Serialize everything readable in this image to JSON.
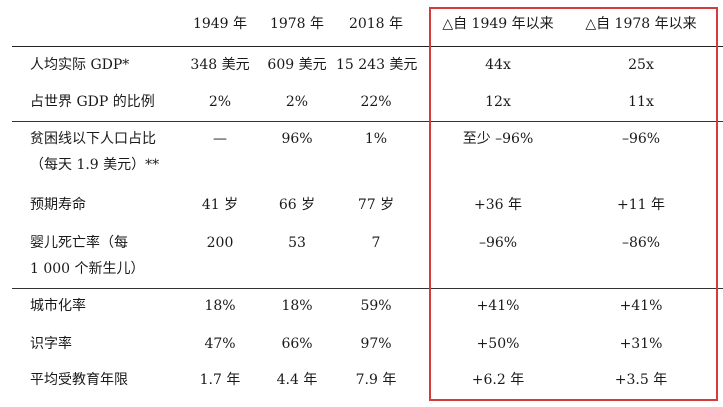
{
  "table": {
    "columns": [
      "1949 年",
      "1978 年",
      "2018 年",
      "△自 1949 年以来",
      "△自 1978 年以来"
    ],
    "rows": [
      {
        "label": [
          "人均实际 GDP*"
        ],
        "values": [
          "348 美元",
          "609 美元",
          "15 243 美元",
          "44x",
          "25x"
        ]
      },
      {
        "label": [
          "占世界 GDP 的比例"
        ],
        "values": [
          "2%",
          "2%",
          "22%",
          "12x",
          "11x"
        ]
      },
      {
        "label": [
          "贫困线以下人口占比",
          "（每天 1.9 美元）**"
        ],
        "values": [
          "—",
          "96%",
          "1%",
          "至少 –96%",
          "–96%"
        ]
      },
      {
        "label": [
          "预期寿命"
        ],
        "values": [
          "41 岁",
          "66 岁",
          "77 岁",
          "+36 年",
          "+11 年"
        ]
      },
      {
        "label": [
          "婴儿死亡率（每",
          "1 000 个新生儿）"
        ],
        "values": [
          "200",
          "53",
          "7",
          "–96%",
          "–86%"
        ]
      },
      {
        "label": [
          "城市化率"
        ],
        "values": [
          "18%",
          "18%",
          "59%",
          "+41%",
          "+41%"
        ]
      },
      {
        "label": [
          "识字率"
        ],
        "values": [
          "47%",
          "66%",
          "97%",
          "+50%",
          "+31%"
        ]
      },
      {
        "label": [
          "平均受教育年限"
        ],
        "values": [
          "1.7 年",
          "4.4 年",
          "7.9 年",
          "+6.2 年",
          "+3.5 年"
        ]
      }
    ]
  },
  "colors": {
    "highlight_border": "#d23c3c",
    "rule_lines": "#333333",
    "text": "#1a1a1a"
  }
}
